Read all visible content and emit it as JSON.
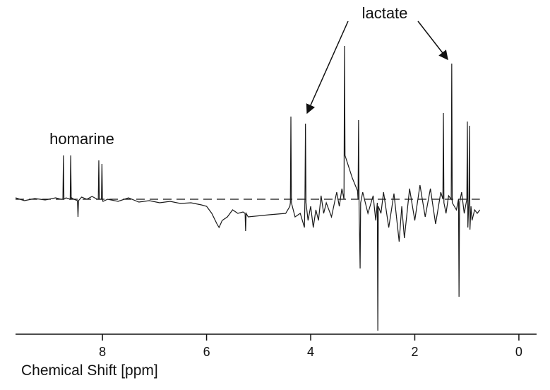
{
  "chart_data": {
    "type": "line",
    "x_label": "Chemical Shift [ppm]",
    "annotations": [
      "homarine",
      "lactate"
    ],
    "color": "#1a1a1a",
    "xlim": [
      9.67,
      -0.34
    ],
    "xticks": [
      8,
      6,
      4,
      2,
      0
    ],
    "ylim": [
      -191,
      222
    ],
    "x": [
      9.67,
      9.5,
      9.3,
      9.1,
      8.9,
      8.8,
      8.76,
      8.75,
      8.74,
      8.7,
      8.62,
      8.61,
      8.6,
      8.59,
      8.55,
      8.48,
      8.47,
      8.46,
      8.4,
      8.3,
      8.2,
      8.1,
      8.08,
      8.07,
      8.06,
      8.02,
      8.01,
      8.0,
      7.99,
      7.9,
      7.7,
      7.5,
      7.3,
      7.1,
      6.9,
      6.7,
      6.5,
      6.3,
      6.1,
      6.0,
      5.9,
      5.8,
      5.76,
      5.7,
      5.6,
      5.5,
      5.4,
      5.3,
      5.26,
      5.25,
      5.24,
      5.2,
      4.8,
      4.48,
      4.4,
      4.39,
      4.38,
      4.37,
      4.3,
      4.2,
      4.12,
      4.11,
      4.1,
      4.09,
      4.05,
      4.0,
      3.95,
      3.9,
      3.85,
      3.8,
      3.75,
      3.7,
      3.6,
      3.5,
      3.45,
      3.4,
      3.36,
      3.35,
      3.34,
      3.2,
      3.1,
      3.09,
      3.08,
      3.07,
      3.05,
      3.04,
      3.0,
      2.9,
      2.8,
      2.75,
      2.72,
      2.71,
      2.7,
      2.65,
      2.6,
      2.5,
      2.4,
      2.3,
      2.25,
      2.2,
      2.1,
      2.0,
      1.9,
      1.8,
      1.7,
      1.6,
      1.5,
      1.46,
      1.45,
      1.44,
      1.4,
      1.35,
      1.3,
      1.29,
      1.28,
      1.2,
      1.16,
      1.15,
      1.14,
      1.1,
      1.05,
      1.0,
      0.99,
      0.98,
      0.96,
      0.95,
      0.94,
      0.92,
      0.9,
      0.85,
      0.8,
      0.75
    ],
    "values": [
      2,
      -2,
      1,
      -1,
      2,
      0,
      0,
      62,
      0,
      2,
      0,
      62,
      0,
      2,
      0,
      -2,
      -25,
      -2,
      3,
      0,
      4,
      0,
      0,
      55,
      0,
      0,
      50,
      0,
      -3,
      0,
      -3,
      2,
      -4,
      -2,
      -5,
      -3,
      -6,
      -5,
      -8,
      -10,
      -20,
      -35,
      -40,
      -30,
      -25,
      -15,
      -20,
      -18,
      -20,
      -45,
      -20,
      -25,
      -22,
      -20,
      -10,
      -5,
      117,
      -5,
      -25,
      -20,
      -40,
      0,
      107,
      -5,
      -30,
      -10,
      -40,
      -15,
      -30,
      5,
      -20,
      -5,
      -25,
      10,
      -10,
      15,
      0,
      217,
      62,
      30,
      12,
      0,
      112,
      -10,
      -98,
      -5,
      10,
      -20,
      5,
      -30,
      -5,
      -186,
      -10,
      -20,
      10,
      -40,
      8,
      -60,
      -10,
      -55,
      15,
      -30,
      20,
      -25,
      15,
      -35,
      10,
      0,
      122,
      -5,
      -20,
      5,
      0,
      192,
      -5,
      -15,
      0,
      -138,
      -5,
      10,
      -20,
      0,
      110,
      -40,
      0,
      104,
      -43,
      -10,
      -30,
      -15,
      -20,
      -15
    ]
  }
}
